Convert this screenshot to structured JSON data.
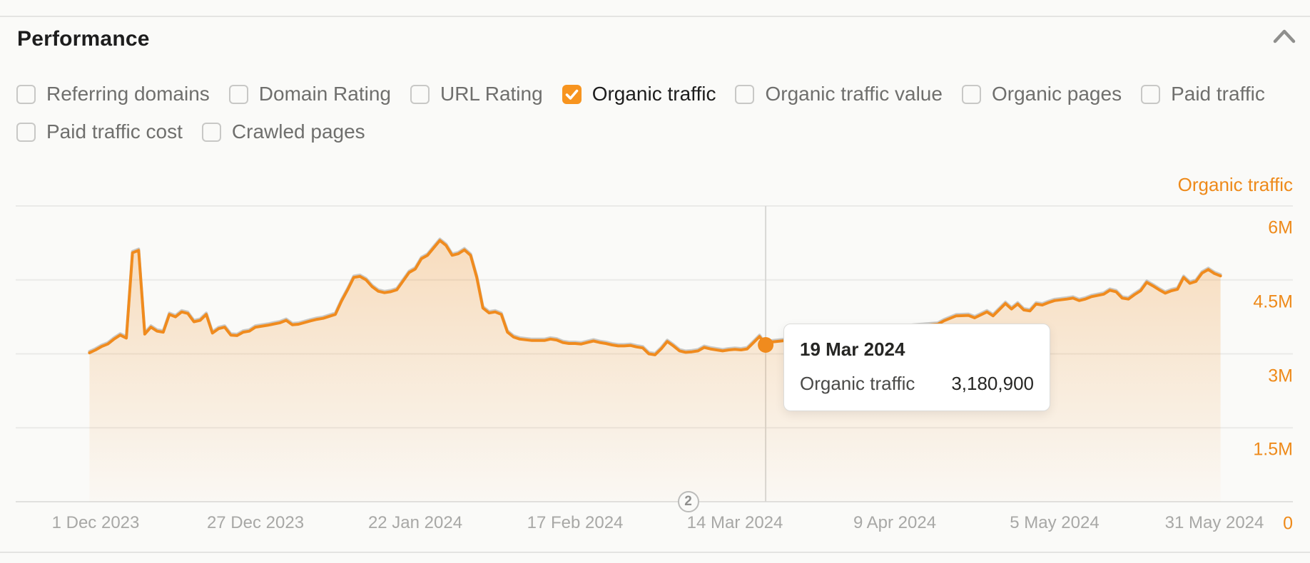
{
  "panel": {
    "title": "Performance"
  },
  "metrics_toolbar": {
    "rows": [
      [
        {
          "label": "Referring domains",
          "checked": false
        },
        {
          "label": "Domain Rating",
          "checked": false
        },
        {
          "label": "URL Rating",
          "checked": false
        },
        {
          "label": "Organic traffic",
          "checked": true
        },
        {
          "label": "Organic traffic value",
          "checked": false
        },
        {
          "label": "Organic pages",
          "checked": false
        },
        {
          "label": "Paid traffic",
          "checked": false
        }
      ],
      [
        {
          "label": "Paid traffic cost",
          "checked": false
        },
        {
          "label": "Crawled pages",
          "checked": false
        }
      ]
    ]
  },
  "colors": {
    "accent_orange": "#f08b1e",
    "checkbox_orange": "#f7941f",
    "axis_label_orange": "#ee8a1a",
    "background": "#fafaf8",
    "gridline": "#eaeae8",
    "axis_line": "#e0e0de",
    "crosshair": "#d8d8d6",
    "date_gray": "#a8a8a6"
  },
  "chart_data": {
    "type": "area",
    "series_name": "Organic traffic",
    "legend": [
      "Organic traffic"
    ],
    "grid": true,
    "x_unit": "days since 1 Dec 2023",
    "x_tick_labels": [
      "1 Dec 2023",
      "27 Dec 2023",
      "22 Jan 2024",
      "17 Feb 2024",
      "14 Mar 2024",
      "9 Apr 2024",
      "5 May 2024",
      "31 May 2024"
    ],
    "x_tick_days": [
      0,
      26,
      52,
      78,
      104,
      130,
      156,
      182
    ],
    "y_tick_labels": [
      "6M",
      "4.5M",
      "3M",
      "1.5M",
      "0"
    ],
    "y_tick_values_millions": [
      6,
      4.5,
      3,
      1.5,
      0
    ],
    "ylim_millions": [
      0,
      6
    ],
    "values_unit": "millions of visits",
    "points": [
      [
        -1,
        3.02
      ],
      [
        0,
        3.08
      ],
      [
        1,
        3.15
      ],
      [
        2,
        3.2
      ],
      [
        3,
        3.3
      ],
      [
        4,
        3.38
      ],
      [
        5,
        3.32
      ],
      [
        6,
        5.05
      ],
      [
        7,
        5.1
      ],
      [
        8,
        3.4
      ],
      [
        9,
        3.54
      ],
      [
        10,
        3.46
      ],
      [
        11,
        3.44
      ],
      [
        12,
        3.8
      ],
      [
        13,
        3.75
      ],
      [
        14,
        3.85
      ],
      [
        15,
        3.82
      ],
      [
        16,
        3.65
      ],
      [
        17,
        3.68
      ],
      [
        18,
        3.8
      ],
      [
        19,
        3.42
      ],
      [
        20,
        3.51
      ],
      [
        21,
        3.54
      ],
      [
        22,
        3.38
      ],
      [
        23,
        3.37
      ],
      [
        24,
        3.44
      ],
      [
        25,
        3.46
      ],
      [
        26,
        3.54
      ],
      [
        28,
        3.58
      ],
      [
        30,
        3.63
      ],
      [
        31,
        3.68
      ],
      [
        32,
        3.59
      ],
      [
        33,
        3.6
      ],
      [
        35,
        3.67
      ],
      [
        36,
        3.7
      ],
      [
        37,
        3.72
      ],
      [
        39,
        3.8
      ],
      [
        40,
        4.07
      ],
      [
        41,
        4.3
      ],
      [
        42,
        4.55
      ],
      [
        43,
        4.57
      ],
      [
        44,
        4.5
      ],
      [
        45,
        4.36
      ],
      [
        46,
        4.27
      ],
      [
        47,
        4.24
      ],
      [
        48,
        4.26
      ],
      [
        49,
        4.3
      ],
      [
        51,
        4.65
      ],
      [
        52,
        4.72
      ],
      [
        53,
        4.93
      ],
      [
        54,
        5.0
      ],
      [
        55,
        5.15
      ],
      [
        56,
        5.3
      ],
      [
        57,
        5.2
      ],
      [
        58,
        5.0
      ],
      [
        59,
        5.03
      ],
      [
        60,
        5.11
      ],
      [
        61,
        5.0
      ],
      [
        62,
        4.55
      ],
      [
        63,
        3.93
      ],
      [
        64,
        3.83
      ],
      [
        65,
        3.85
      ],
      [
        66,
        3.8
      ],
      [
        67,
        3.44
      ],
      [
        68,
        3.34
      ],
      [
        69,
        3.3
      ],
      [
        71,
        3.27
      ],
      [
        73,
        3.27
      ],
      [
        74,
        3.3
      ],
      [
        75,
        3.28
      ],
      [
        76,
        3.23
      ],
      [
        77,
        3.21
      ],
      [
        78,
        3.21
      ],
      [
        79,
        3.2
      ],
      [
        80,
        3.23
      ],
      [
        81,
        3.26
      ],
      [
        82,
        3.23
      ],
      [
        83,
        3.21
      ],
      [
        84,
        3.18
      ],
      [
        85,
        3.16
      ],
      [
        86,
        3.16
      ],
      [
        87,
        3.17
      ],
      [
        88,
        3.14
      ],
      [
        89,
        3.12
      ],
      [
        90,
        3.0
      ],
      [
        91,
        2.98
      ],
      [
        92,
        3.1
      ],
      [
        93,
        3.25
      ],
      [
        94,
        3.16
      ],
      [
        95,
        3.06
      ],
      [
        96,
        3.03
      ],
      [
        97,
        3.04
      ],
      [
        98,
        3.06
      ],
      [
        99,
        3.13
      ],
      [
        100,
        3.1
      ],
      [
        101,
        3.08
      ],
      [
        102,
        3.06
      ],
      [
        103,
        3.08
      ],
      [
        104,
        3.09
      ],
      [
        105,
        3.08
      ],
      [
        106,
        3.1
      ],
      [
        108,
        3.35
      ],
      [
        109,
        3.1809
      ],
      [
        110,
        3.24
      ],
      [
        113,
        3.28
      ],
      [
        116,
        3.33
      ],
      [
        120,
        3.4
      ],
      [
        124,
        3.46
      ],
      [
        128,
        3.5
      ],
      [
        132,
        3.55
      ],
      [
        135,
        3.58
      ],
      [
        137,
        3.6
      ],
      [
        138,
        3.67
      ],
      [
        140,
        3.77
      ],
      [
        142,
        3.78
      ],
      [
        143,
        3.73
      ],
      [
        145,
        3.85
      ],
      [
        146,
        3.77
      ],
      [
        148,
        4.02
      ],
      [
        149,
        3.91
      ],
      [
        150,
        4.01
      ],
      [
        151,
        3.89
      ],
      [
        152,
        3.87
      ],
      [
        153,
        4.01
      ],
      [
        154,
        3.99
      ],
      [
        155,
        4.04
      ],
      [
        156,
        4.08
      ],
      [
        158,
        4.11
      ],
      [
        159,
        4.13
      ],
      [
        160,
        4.08
      ],
      [
        161,
        4.11
      ],
      [
        162,
        4.16
      ],
      [
        164,
        4.21
      ],
      [
        165,
        4.29
      ],
      [
        166,
        4.26
      ],
      [
        167,
        4.13
      ],
      [
        168,
        4.11
      ],
      [
        169,
        4.2
      ],
      [
        170,
        4.28
      ],
      [
        171,
        4.45
      ],
      [
        172,
        4.38
      ],
      [
        173,
        4.3
      ],
      [
        174,
        4.23
      ],
      [
        175,
        4.28
      ],
      [
        176,
        4.31
      ],
      [
        177,
        4.55
      ],
      [
        178,
        4.43
      ],
      [
        179,
        4.47
      ],
      [
        180,
        4.64
      ],
      [
        181,
        4.71
      ],
      [
        182,
        4.63
      ],
      [
        183,
        4.58
      ]
    ],
    "annotation_marker": {
      "label": "2",
      "day": 96.4
    },
    "hover_point": {
      "day": 109,
      "value_millions": 3.1809
    }
  },
  "tooltip": {
    "date": "19 Mar 2024",
    "metric": "Organic traffic",
    "value": "3,180,900"
  },
  "y_axis_zero_label": "0"
}
